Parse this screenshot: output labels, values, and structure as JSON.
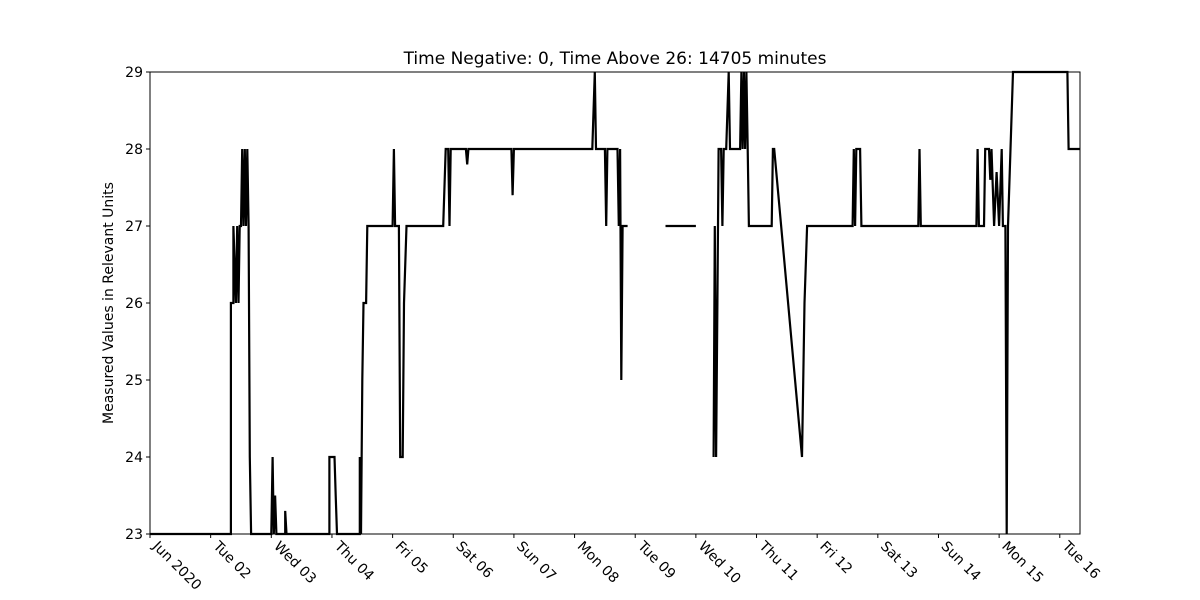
{
  "chart_data": {
    "type": "line",
    "title": "Time Negative: 0, Time Above 26: 14705 minutes",
    "xlabel": "",
    "ylabel": "Measured Values in Relevant Units",
    "xlim": [
      "2020-06-01T00:00",
      "2020-06-16T08:00"
    ],
    "ylim": [
      23,
      29
    ],
    "y_ticks": [
      23,
      24,
      25,
      26,
      27,
      28,
      29
    ],
    "x_ticks": [
      {
        "date": "2020-06-01",
        "label": "Jun 2020"
      },
      {
        "date": "2020-06-02",
        "label": "Tue 02"
      },
      {
        "date": "2020-06-03",
        "label": "Wed 03"
      },
      {
        "date": "2020-06-04",
        "label": "Thu 04"
      },
      {
        "date": "2020-06-05",
        "label": "Fri 05"
      },
      {
        "date": "2020-06-06",
        "label": "Sat 06"
      },
      {
        "date": "2020-06-07",
        "label": "Sun 07"
      },
      {
        "date": "2020-06-08",
        "label": "Mon 08"
      },
      {
        "date": "2020-06-09",
        "label": "Tue 09"
      },
      {
        "date": "2020-06-10",
        "label": "Wed 10"
      },
      {
        "date": "2020-06-11",
        "label": "Thu 11"
      },
      {
        "date": "2020-06-12",
        "label": "Fri 12"
      },
      {
        "date": "2020-06-13",
        "label": "Sat 13"
      },
      {
        "date": "2020-06-14",
        "label": "Sun 14"
      },
      {
        "date": "2020-06-15",
        "label": "Mon 15"
      },
      {
        "date": "2020-06-16",
        "label": "Tue 16"
      }
    ],
    "grid": false,
    "line_color": "#000000",
    "series": [
      {
        "segments": [
          [
            [
              "2020-06-01T00:00",
              23
            ],
            [
              "2020-06-02T08:00",
              23
            ],
            [
              "2020-06-02T08:00",
              26
            ],
            [
              "2020-06-02T09:00",
              26
            ],
            [
              "2020-06-02T09:00",
              27
            ],
            [
              "2020-06-02T10:00",
              26
            ],
            [
              "2020-06-02T10:30",
              27
            ],
            [
              "2020-06-02T11:00",
              26
            ],
            [
              "2020-06-02T11:30",
              27
            ],
            [
              "2020-06-02T12:00",
              27
            ],
            [
              "2020-06-02T12:30",
              28
            ],
            [
              "2020-06-02T13:00",
              27
            ],
            [
              "2020-06-02T13:30",
              28
            ],
            [
              "2020-06-02T14:00",
              27
            ],
            [
              "2020-06-02T14:30",
              28
            ],
            [
              "2020-06-02T15:00",
              27
            ],
            [
              "2020-06-02T15:30",
              24
            ],
            [
              "2020-06-02T16:00",
              23
            ],
            [
              "2020-06-03T00:00",
              23
            ],
            [
              "2020-06-03T00:30",
              24
            ],
            [
              "2020-06-03T01:00",
              23
            ],
            [
              "2020-06-03T01:30",
              23.5
            ],
            [
              "2020-06-03T02:00",
              23
            ],
            [
              "2020-06-03T05:30",
              23
            ],
            [
              "2020-06-03T05:30",
              23.3
            ],
            [
              "2020-06-03T06:00",
              23
            ],
            [
              "2020-06-03T23:00",
              23
            ],
            [
              "2020-06-03T23:00",
              24
            ],
            [
              "2020-06-04T01:00",
              24
            ],
            [
              "2020-06-04T01:30",
              23.5
            ],
            [
              "2020-06-04T02:00",
              23
            ],
            [
              "2020-06-04T11:00",
              23
            ],
            [
              "2020-06-04T11:00",
              24
            ],
            [
              "2020-06-04T11:30",
              23
            ],
            [
              "2020-06-04T12:00",
              25
            ],
            [
              "2020-06-04T12:30",
              26
            ],
            [
              "2020-06-04T13:30",
              26
            ],
            [
              "2020-06-04T14:00",
              27
            ],
            [
              "2020-06-05T00:00",
              27
            ],
            [
              "2020-06-05T00:30",
              28
            ],
            [
              "2020-06-05T01:00",
              27
            ],
            [
              "2020-06-05T02:30",
              27
            ],
            [
              "2020-06-05T03:00",
              24
            ],
            [
              "2020-06-05T04:00",
              24
            ],
            [
              "2020-06-05T04:30",
              26
            ],
            [
              "2020-06-05T05:30",
              27
            ],
            [
              "2020-06-05T20:00",
              27
            ],
            [
              "2020-06-05T21:00",
              28
            ],
            [
              "2020-06-05T22:00",
              28
            ],
            [
              "2020-06-05T22:30",
              27
            ],
            [
              "2020-06-05T23:00",
              28
            ],
            [
              "2020-06-06T05:00",
              28
            ],
            [
              "2020-06-06T05:30",
              27.8
            ],
            [
              "2020-06-06T06:00",
              28
            ],
            [
              "2020-06-06T23:00",
              28
            ],
            [
              "2020-06-06T23:30",
              27.4
            ],
            [
              "2020-06-07T00:00",
              28
            ],
            [
              "2020-06-08T07:00",
              28
            ],
            [
              "2020-06-08T08:00",
              29
            ],
            [
              "2020-06-08T08:30",
              28
            ],
            [
              "2020-06-08T12:00",
              28
            ],
            [
              "2020-06-08T12:30",
              27
            ],
            [
              "2020-06-08T13:00",
              28
            ],
            [
              "2020-06-08T17:00",
              28
            ],
            [
              "2020-06-08T17:30",
              27
            ],
            [
              "2020-06-08T18:00",
              28
            ],
            [
              "2020-06-08T18:30",
              25
            ],
            [
              "2020-06-08T19:00",
              27
            ],
            [
              "2020-06-08T21:00",
              27
            ]
          ],
          [
            [
              "2020-06-09T12:00",
              27
            ],
            [
              "2020-06-10T00:00",
              27
            ]
          ],
          [
            [
              "2020-06-10T07:00",
              24
            ],
            [
              "2020-06-10T07:30",
              27
            ],
            [
              "2020-06-10T08:00",
              24
            ],
            [
              "2020-06-10T08:30",
              26
            ],
            [
              "2020-06-10T09:00",
              28
            ],
            [
              "2020-06-10T10:00",
              28
            ],
            [
              "2020-06-10T10:30",
              27
            ],
            [
              "2020-06-10T11:00",
              28
            ],
            [
              "2020-06-10T12:00",
              28
            ],
            [
              "2020-06-10T13:00",
              29
            ],
            [
              "2020-06-10T13:30",
              28
            ],
            [
              "2020-06-10T17:30",
              28
            ],
            [
              "2020-06-10T18:00",
              29
            ],
            [
              "2020-06-10T18:30",
              28
            ],
            [
              "2020-06-10T19:00",
              29
            ],
            [
              "2020-06-10T19:30",
              28
            ],
            [
              "2020-06-10T20:00",
              29
            ],
            [
              "2020-06-10T20:30",
              28
            ],
            [
              "2020-06-10T21:00",
              27
            ],
            [
              "2020-06-11T06:00",
              27
            ],
            [
              "2020-06-11T06:30",
              28
            ],
            [
              "2020-06-11T07:00",
              28
            ],
            [
              "2020-06-11T18:00",
              24
            ],
            [
              "2020-06-11T19:00",
              26
            ],
            [
              "2020-06-11T20:00",
              27
            ],
            [
              "2020-06-12T14:00",
              27
            ],
            [
              "2020-06-12T14:30",
              28
            ],
            [
              "2020-06-12T15:00",
              27
            ],
            [
              "2020-06-12T15:30",
              28
            ],
            [
              "2020-06-12T17:00",
              28
            ],
            [
              "2020-06-12T17:30",
              27
            ],
            [
              "2020-06-13T16:00",
              27
            ],
            [
              "2020-06-13T16:30",
              28
            ],
            [
              "2020-06-13T17:00",
              27
            ],
            [
              "2020-06-14T15:00",
              27
            ],
            [
              "2020-06-14T15:30",
              28
            ],
            [
              "2020-06-14T16:00",
              27
            ],
            [
              "2020-06-14T18:00",
              27
            ],
            [
              "2020-06-14T18:30",
              28
            ],
            [
              "2020-06-14T20:00",
              28
            ],
            [
              "2020-06-14T20:30",
              27.6
            ],
            [
              "2020-06-14T21:00",
              28
            ],
            [
              "2020-06-14T22:00",
              27
            ],
            [
              "2020-06-14T23:00",
              27.7
            ],
            [
              "2020-06-15T00:00",
              27
            ],
            [
              "2020-06-15T01:00",
              28
            ],
            [
              "2020-06-15T01:30",
              27
            ],
            [
              "2020-06-15T02:30",
              27
            ],
            [
              "2020-06-15T03:00",
              23
            ],
            [
              "2020-06-15T03:30",
              27
            ],
            [
              "2020-06-15T04:30",
              28
            ],
            [
              "2020-06-15T05:30",
              29
            ],
            [
              "2020-06-16T03:00",
              29
            ],
            [
              "2020-06-16T03:30",
              28
            ],
            [
              "2020-06-16T08:00",
              28
            ]
          ]
        ]
      }
    ]
  }
}
